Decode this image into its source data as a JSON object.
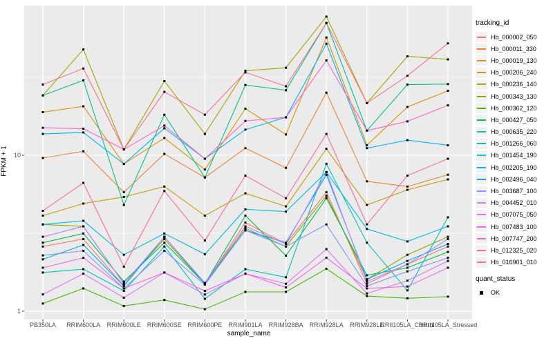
{
  "figure": {
    "background": "#FFFFFF",
    "panel_background": "#EBEBEB",
    "gridline_color": "#FFFFFF",
    "axis_text_color": "#4D4D4D",
    "tick_mark_color": "#333333",
    "point_color": "#000000",
    "legend_key_background": "#F2F2F2"
  },
  "chart_data": {
    "type": "line",
    "title": "",
    "xlabel": "sample_name",
    "ylabel": "FPKM + 1",
    "y_scale": "log10",
    "ylim": [
      1,
      91
    ],
    "grid": "on",
    "legend_position": "right",
    "y_ticks": [
      {
        "label": "10",
        "value": 10
      },
      {
        "label": "1",
        "value": 1
      }
    ],
    "y_minor_gridlines": [
      3.162,
      31.62
    ],
    "categories": [
      "PB350LA",
      "RRIM600LA",
      "RRIM600LE",
      "RRIM600SE",
      "RRIM600PE",
      "RRIM901LA",
      "RRIM928BA",
      "RRIM928LA",
      "RRIM928LE",
      "RRII105LA_Control",
      "RRII105LA_Stressed"
    ],
    "series": [
      {
        "name": "Hb_000002_050",
        "color": "#F8766D",
        "values": [
          2.6,
          2.9,
          1.45,
          3.0,
          1.5,
          3.7,
          2.7,
          5.8,
          1.5,
          2.0,
          2.6
        ]
      },
      {
        "name": "Hb_000011_330",
        "color": "#EB8335",
        "values": [
          9.6,
          10.6,
          5.8,
          10.2,
          7.2,
          11.1,
          8.3,
          25.2,
          6.8,
          6.3,
          7.5
        ]
      },
      {
        "name": "Hb_000019_130",
        "color": "#D99200",
        "values": [
          18.9,
          20.6,
          8.8,
          12.9,
          8.1,
          19.9,
          13.6,
          56.9,
          11.6,
          20.4,
          25.9
        ]
      },
      {
        "name": "Hb_000206_240",
        "color": "#C29B00",
        "values": [
          4.1,
          4.9,
          5.4,
          6.3,
          4.1,
          5.7,
          4.7,
          11.0,
          4.8,
          6.0,
          7.0
        ]
      },
      {
        "name": "Hb_000236_140",
        "color": "#A6A400",
        "values": [
          24.2,
          47.7,
          10.9,
          29.9,
          13.7,
          34.8,
          36.4,
          77.5,
          21.6,
          43.1,
          41.2
        ]
      },
      {
        "name": "Hb_000343_130",
        "color": "#81AB00",
        "values": [
          3.6,
          3.5,
          1.5,
          2.9,
          1.5,
          3.4,
          2.6,
          5.5,
          1.6,
          2.3,
          3.0
        ]
      },
      {
        "name": "Hb_000362_120",
        "color": "#45B500",
        "values": [
          1.12,
          1.4,
          1.08,
          1.18,
          1.03,
          1.33,
          1.33,
          1.87,
          1.25,
          1.21,
          1.24
        ]
      },
      {
        "name": "Hb_000427_050",
        "color": "#00BC51",
        "values": [
          2.75,
          3.15,
          1.55,
          2.75,
          1.5,
          4.1,
          2.27,
          5.3,
          1.7,
          1.9,
          2.4
        ]
      },
      {
        "name": "Hb_000635_220",
        "color": "#00C08E",
        "values": [
          24.2,
          30.2,
          4.8,
          18.2,
          7.2,
          28.2,
          26.1,
          70.5,
          14.4,
          28.4,
          28.6
        ]
      },
      {
        "name": "Hb_001266_060",
        "color": "#00C0BC",
        "values": [
          1.77,
          1.86,
          1.35,
          2.6,
          1.2,
          1.86,
          1.65,
          8.8,
          2.75,
          1.36,
          4.0
        ]
      },
      {
        "name": "Hb_001454_190",
        "color": "#00BBDA",
        "values": [
          3.6,
          3.8,
          2.3,
          3.15,
          2.32,
          4.5,
          4.35,
          7.8,
          3.37,
          2.8,
          3.5
        ]
      },
      {
        "name": "Hb_002205_190",
        "color": "#00B2F3",
        "values": [
          13.7,
          14.0,
          8.8,
          14.9,
          9.5,
          14.6,
          17.5,
          51.9,
          11.1,
          12.5,
          11.6
        ]
      },
      {
        "name": "Hb_002496_040",
        "color": "#00A5FF",
        "values": [
          2.15,
          2.66,
          1.45,
          3.0,
          1.5,
          3.3,
          2.75,
          7.5,
          1.6,
          2.1,
          2.7
        ]
      },
      {
        "name": "Hb_003687_100",
        "color": "#7F96FF",
        "values": [
          2.28,
          2.44,
          1.4,
          2.44,
          1.48,
          3.3,
          2.6,
          3.6,
          1.45,
          1.8,
          2.2
        ]
      },
      {
        "name": "Hb_004452_010",
        "color": "#B983FF",
        "values": [
          3.0,
          3.5,
          1.5,
          3.0,
          1.52,
          3.5,
          2.7,
          7.8,
          1.55,
          2.0,
          2.9
        ]
      },
      {
        "name": "Hb_007075_050",
        "color": "#DC71FA",
        "values": [
          1.28,
          1.74,
          1.22,
          1.77,
          1.28,
          1.74,
          1.5,
          2.5,
          1.3,
          1.57,
          2.1
        ]
      },
      {
        "name": "Hb_007483_100",
        "color": "#F166E8",
        "values": [
          1.9,
          2.2,
          1.4,
          1.77,
          1.35,
          1.74,
          1.42,
          2.2,
          1.4,
          1.44,
          1.9
        ]
      },
      {
        "name": "Hb_007747_200",
        "color": "#FF61C7",
        "values": [
          15.0,
          14.8,
          10.9,
          15.5,
          9.5,
          16.6,
          17.5,
          40.6,
          14.4,
          16.5,
          20.9
        ]
      },
      {
        "name": "Hb_012325_020",
        "color": "#FF67A5",
        "values": [
          4.4,
          6.65,
          1.93,
          5.9,
          2.84,
          7.4,
          5.3,
          13.7,
          3.6,
          7.4,
          9.5
        ]
      },
      {
        "name": "Hb_016901_010",
        "color": "#FD6F88",
        "values": [
          28.4,
          36.0,
          10.9,
          25.5,
          18.2,
          34.0,
          27.7,
          70.5,
          21.6,
          32.3,
          52.2
        ]
      }
    ],
    "legend": {
      "series_title": "tracking_id",
      "status_title": "quant_status",
      "status_items": [
        {
          "label": "OK"
        }
      ]
    }
  }
}
